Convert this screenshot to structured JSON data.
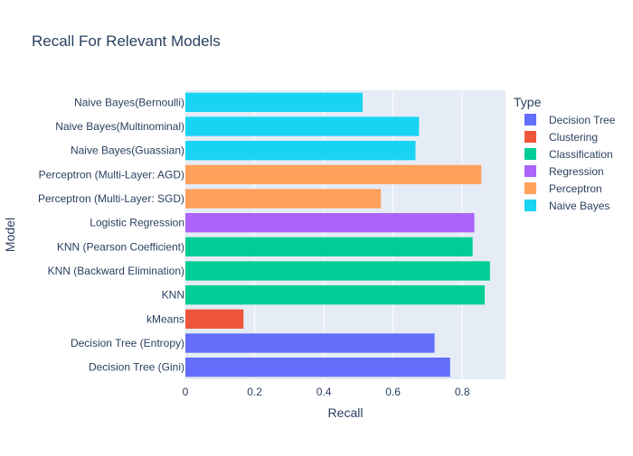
{
  "chart_data": {
    "type": "bar",
    "orientation": "horizontal",
    "title": "Recall For Relevant Models",
    "xlabel": "Recall",
    "ylabel": "Model",
    "xlim": [
      0,
      0.925
    ],
    "xticks": [
      0,
      0.2,
      0.4,
      0.6,
      0.8
    ],
    "tick_labels": [
      "0",
      "0.2",
      "0.4",
      "0.6",
      "0.8"
    ],
    "grid": true,
    "legend": {
      "title": "Type",
      "placement": "right",
      "entries": [
        {
          "name": "Decision Tree",
          "color": "#636efa"
        },
        {
          "name": "Clustering",
          "color": "#ef553b"
        },
        {
          "name": "Classification",
          "color": "#00cc96"
        },
        {
          "name": "Regression",
          "color": "#ab63fa"
        },
        {
          "name": "Perceptron",
          "color": "#ffa15a"
        },
        {
          "name": "Naive Bayes",
          "color": "#19d3f3"
        }
      ]
    },
    "bars": [
      {
        "category": "Decision Tree (Gini)",
        "value": 0.765,
        "type": "Decision Tree"
      },
      {
        "category": "Decision Tree (Entropy)",
        "value": 0.72,
        "type": "Decision Tree"
      },
      {
        "category": "kMeans",
        "value": 0.168,
        "type": "Clustering"
      },
      {
        "category": "KNN",
        "value": 0.865,
        "type": "Classification"
      },
      {
        "category": "KNN (Backward Elimination)",
        "value": 0.88,
        "type": "Classification"
      },
      {
        "category": "KNN (Pearson Coefficient)",
        "value": 0.83,
        "type": "Classification"
      },
      {
        "category": "Logistic Regression",
        "value": 0.835,
        "type": "Regression"
      },
      {
        "category": "Perceptron (Multi-Layer: SGD)",
        "value": 0.565,
        "type": "Perceptron"
      },
      {
        "category": "Perceptron (Multi-Layer: AGD)",
        "value": 0.855,
        "type": "Perceptron"
      },
      {
        "category": "Naive Bayes(Guassian)",
        "value": 0.665,
        "type": "Naive Bayes"
      },
      {
        "category": "Naive Bayes(Multinominal)",
        "value": 0.675,
        "type": "Naive Bayes"
      },
      {
        "category": "Naive Bayes(Bernoulli)",
        "value": 0.512,
        "type": "Naive Bayes"
      }
    ]
  }
}
